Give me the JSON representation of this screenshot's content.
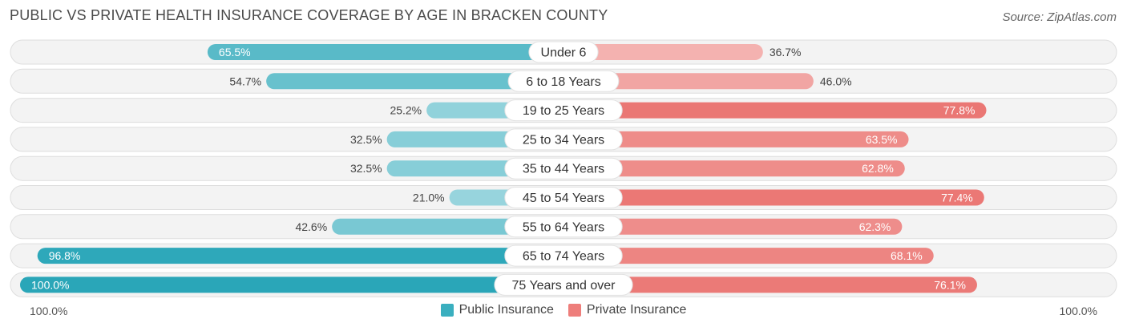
{
  "title": "PUBLIC VS PRIVATE HEALTH INSURANCE COVERAGE BY AGE IN BRACKEN COUNTY",
  "source": "Source: ZipAtlas.com",
  "axis": {
    "left_label": "100.0%",
    "right_label": "100.0%"
  },
  "legend": [
    {
      "label": "Public Insurance",
      "color": "#3aafbf"
    },
    {
      "label": "Private Insurance",
      "color": "#ee7e7b"
    }
  ],
  "chart_data": {
    "type": "bar",
    "orientation": "horizontal-diverging",
    "title": "PUBLIC VS PRIVATE HEALTH INSURANCE COVERAGE BY AGE IN BRACKEN COUNTY",
    "categories": [
      "Under 6",
      "6 to 18 Years",
      "19 to 25 Years",
      "25 to 34 Years",
      "35 to 44 Years",
      "45 to 54 Years",
      "55 to 64 Years",
      "65 to 74 Years",
      "75 Years and over"
    ],
    "series": [
      {
        "name": "Public Insurance",
        "values": [
          65.5,
          54.7,
          25.2,
          32.5,
          32.5,
          21.0,
          42.6,
          96.8,
          100.0
        ],
        "labels": [
          "65.5%",
          "54.7%",
          "25.2%",
          "32.5%",
          "32.5%",
          "21.0%",
          "42.6%",
          "96.8%",
          "100.0%"
        ]
      },
      {
        "name": "Private Insurance",
        "values": [
          36.7,
          46.0,
          77.8,
          63.5,
          62.8,
          77.4,
          62.3,
          68.1,
          76.1
        ],
        "labels": [
          "36.7%",
          "46.0%",
          "77.8%",
          "63.5%",
          "62.8%",
          "77.4%",
          "62.3%",
          "68.1%",
          "76.1%"
        ]
      }
    ],
    "xlim": [
      -100,
      100
    ],
    "xlabel_left": "100.0%",
    "xlabel_right": "100.0%",
    "legend_position": "bottom-center"
  }
}
